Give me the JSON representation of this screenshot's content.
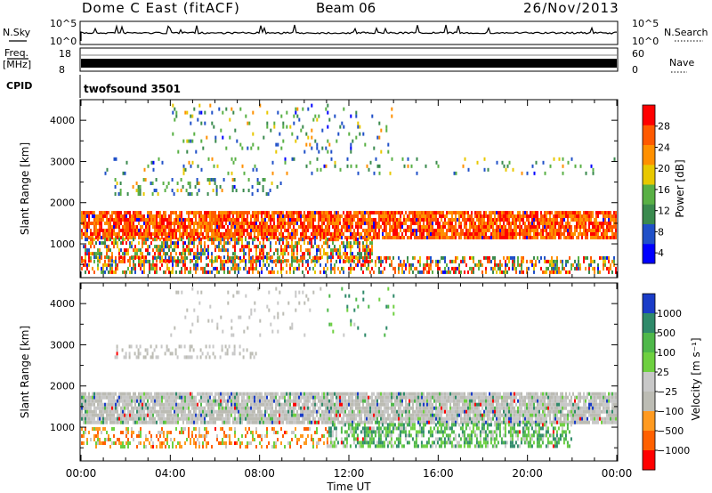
{
  "header": {
    "radar": "Dome C East (fitACF)",
    "beam": "Beam 06",
    "date": "26/Nov/2013"
  },
  "top_panels": {
    "nsky_label": "N.Sky",
    "nsky_ticks": [
      "10^5",
      "10^0"
    ],
    "nsearch_label": "N.Search",
    "nsearch_ticks": [
      "10^5",
      "10^0"
    ],
    "freq_label": "Freq.",
    "freq_unit": "[MHz]",
    "freq_ticks": [
      "18",
      "8"
    ],
    "nave_label": "Nave",
    "nave_ticks": [
      "60",
      "0"
    ],
    "cpid_label": "CPID",
    "cpid_value": "twofsound 3501"
  },
  "chart_data": [
    {
      "type": "heatmap",
      "name": "power",
      "ylabel": "Slant Range [km]",
      "xlabel": "Time UT",
      "x_ticks": [
        "00:00",
        "04:00",
        "08:00",
        "12:00",
        "16:00",
        "20:00",
        "00:00"
      ],
      "x_range_hours": [
        0,
        24
      ],
      "y_ticks": [
        1000,
        2000,
        3000,
        4000
      ],
      "y_range_km": [
        180,
        4500
      ],
      "colorbar": {
        "label": "Power [dB]",
        "ticks": [
          "28",
          "24",
          "20",
          "16",
          "12",
          "8",
          "4"
        ],
        "range": [
          0,
          30
        ]
      },
      "palette": [
        "#0000ff",
        "#2050c8",
        "#3a8a4e",
        "#59b045",
        "#e8c800",
        "#ff9000",
        "#ff5a00",
        "#ff0000"
      ],
      "bands": [
        {
          "range_km": [
            1150,
            1800
          ],
          "hours": [
            0,
            24
          ],
          "density": 0.85
        },
        {
          "range_km": [
            600,
            1150
          ],
          "hours": [
            0,
            13
          ],
          "density": 0.55
        },
        {
          "range_km": [
            300,
            700
          ],
          "hours": [
            0,
            24
          ],
          "density": 0.45
        },
        {
          "range_km": [
            2200,
            2600
          ],
          "hours": [
            1.5,
            9
          ],
          "density": 0.2
        },
        {
          "range_km": [
            2700,
            3100
          ],
          "hours": [
            0.5,
            24
          ],
          "density": 0.08
        },
        {
          "range_km": [
            3200,
            4400
          ],
          "hours": [
            4,
            14
          ],
          "density": 0.1
        }
      ]
    },
    {
      "type": "heatmap",
      "name": "velocity",
      "ylabel": "Slant Range [km]",
      "xlabel": "Time UT",
      "x_ticks": [
        "00:00",
        "04:00",
        "08:00",
        "12:00",
        "16:00",
        "20:00",
        "00:00"
      ],
      "x_range_hours": [
        0,
        24
      ],
      "y_ticks": [
        1000,
        2000,
        3000,
        4000
      ],
      "y_range_km": [
        180,
        4500
      ],
      "colorbar": {
        "label": "Velocity [m s⁻¹]",
        "ticks": [
          "1000",
          "500",
          "100",
          "25",
          "−25",
          "−100",
          "−500",
          "−1000"
        ]
      },
      "palette": [
        "#1a3cc8",
        "#2f8a6a",
        "#4fb84a",
        "#6ed040",
        "#c8c8c8",
        "#bcbcb4",
        "#ff9a20",
        "#ff6000",
        "#ff0000"
      ],
      "bands": [
        {
          "range_km": [
            1100,
            1850
          ],
          "hours": [
            0,
            24
          ],
          "density": 0.9
        },
        {
          "range_km": [
            500,
            1100
          ],
          "hours": [
            11,
            22
          ],
          "density": 0.6
        },
        {
          "range_km": [
            550,
            1000
          ],
          "hours": [
            0,
            11
          ],
          "density": 0.35
        },
        {
          "range_km": [
            2700,
            3000
          ],
          "hours": [
            1.5,
            8
          ],
          "density": 0.25
        },
        {
          "range_km": [
            3200,
            4400
          ],
          "hours": [
            4,
            14
          ],
          "density": 0.06
        }
      ]
    }
  ]
}
